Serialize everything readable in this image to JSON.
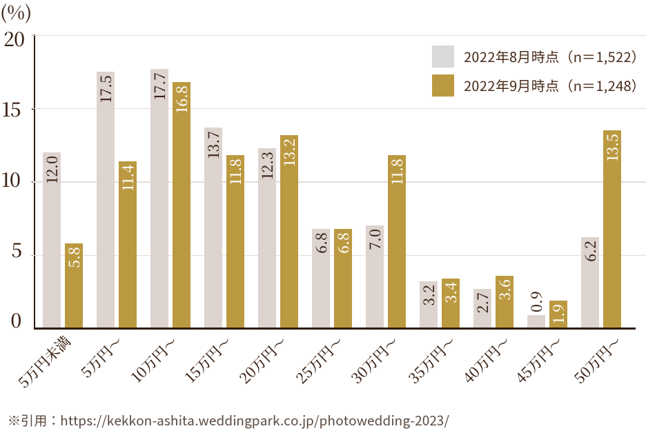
{
  "chart_data": {
    "type": "bar",
    "unit_label": "(%)",
    "categories": [
      "5万円未満",
      "5万円～",
      "10万円～",
      "15万円～",
      "20万円～",
      "25万円～",
      "30万円～",
      "35万円～",
      "40万円～",
      "45万円～",
      "50万円～"
    ],
    "series": [
      {
        "name": "2022年8月時点（n＝1,522）",
        "bar_color": "#DDD3CF",
        "legend_color": "#D9D9D9",
        "value_label_color": "#3A2315",
        "values": [
          12.0,
          17.5,
          17.7,
          13.7,
          12.3,
          6.8,
          7.0,
          3.2,
          2.7,
          0.9,
          6.2
        ]
      },
      {
        "name": "2022年9月時点（n＝1,248）",
        "bar_color": "#BB9940",
        "legend_color": "#BB9940",
        "value_label_color": "#FFFFFF",
        "values": [
          5.8,
          11.4,
          16.8,
          11.8,
          13.2,
          6.8,
          11.8,
          3.4,
          3.6,
          1.9,
          13.5
        ]
      }
    ],
    "yticks": [
      0,
      5,
      10,
      15,
      20
    ],
    "ylim": [
      0,
      20
    ],
    "grid": true,
    "legend_position": "top-right",
    "value_labels_rotated": true
  },
  "footer": {
    "source_note": "※引用：https://kekkon-ashita.weddingpark.co.jp/photowedding-2023/"
  },
  "colors": {
    "background": "#FFFFFF",
    "axis_line": "#2E1A0D",
    "tick_label": "#3A2315",
    "gridline": "#E6DCD8",
    "legend_text": "#4A2C1B",
    "footer_text": "#5C4B40"
  }
}
